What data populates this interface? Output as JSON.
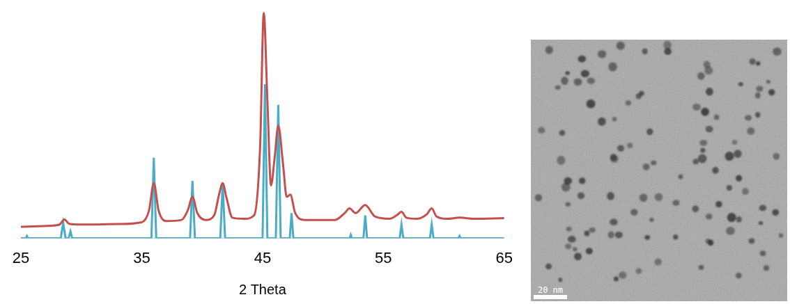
{
  "chart_data": {
    "type": "line",
    "x_label": "2 Theta",
    "xlim": [
      25,
      65
    ],
    "xticks": [
      25,
      35,
      45,
      55,
      65
    ],
    "ylim": [
      0,
      100
    ],
    "tick_labels": "x",
    "grid": false,
    "series": [
      {
        "color": "#c44f4f",
        "line_style": "smooth",
        "x": [
          25,
          27.5,
          28.2,
          28.6,
          29.0,
          30,
          33,
          35.0,
          35.6,
          36.0,
          36.4,
          37.0,
          38.3,
          38.8,
          39.2,
          39.6,
          40.3,
          41.0,
          41.4,
          41.7,
          42.0,
          42.5,
          43.5,
          44.3,
          44.8,
          45.1,
          45.4,
          45.7,
          46.0,
          46.3,
          46.7,
          47.0,
          47.3,
          47.7,
          48.5,
          51.0,
          51.8,
          52.2,
          52.7,
          53.5,
          54.3,
          55.5,
          56.1,
          56.5,
          56.9,
          57.8,
          58.6,
          59.0,
          59.4,
          60.3,
          61.3,
          62.5,
          65
        ],
        "values": [
          5.0,
          5.5,
          6,
          8.2,
          6.3,
          6,
          6.2,
          7,
          12,
          24,
          12,
          7.5,
          8,
          12,
          18,
          11,
          8,
          10,
          19,
          24,
          18,
          9,
          8.5,
          10,
          40,
          98,
          60,
          23,
          35,
          49,
          32,
          18,
          19,
          11,
          8,
          8,
          11,
          13,
          11,
          14.5,
          9.5,
          8.5,
          10,
          11.5,
          9,
          8.5,
          10.5,
          13,
          9.5,
          8.5,
          9,
          8.5,
          8.8
        ]
      },
      {
        "color": "#4bacc6",
        "line_style": "solid",
        "x": [
          25,
          25.4,
          25.5,
          25.6,
          28.3,
          28.5,
          28.7,
          28.95,
          29.1,
          29.25,
          35.8,
          36.0,
          36.2,
          39.0,
          39.2,
          39.4,
          41.5,
          41.7,
          41.9,
          45.0,
          45.2,
          45.4,
          46.1,
          46.3,
          46.5,
          47.25,
          47.4,
          47.55,
          52.2,
          52.3,
          52.4,
          53.35,
          53.5,
          53.65,
          56.35,
          56.5,
          56.65,
          58.85,
          59.0,
          59.15,
          61.2,
          61.3,
          61.4,
          65
        ],
        "values": [
          0,
          0,
          1,
          0,
          0,
          6.7,
          0,
          0,
          3,
          0,
          0,
          35,
          0,
          0,
          25,
          0,
          0,
          24,
          0,
          0,
          67,
          0,
          0,
          58,
          0,
          0,
          11,
          0,
          0,
          1.5,
          0,
          0,
          10,
          0,
          0,
          6,
          0,
          0,
          6,
          0,
          0,
          1,
          0,
          0
        ]
      }
    ]
  },
  "image": {
    "scale_bar_label": "20 nm"
  }
}
